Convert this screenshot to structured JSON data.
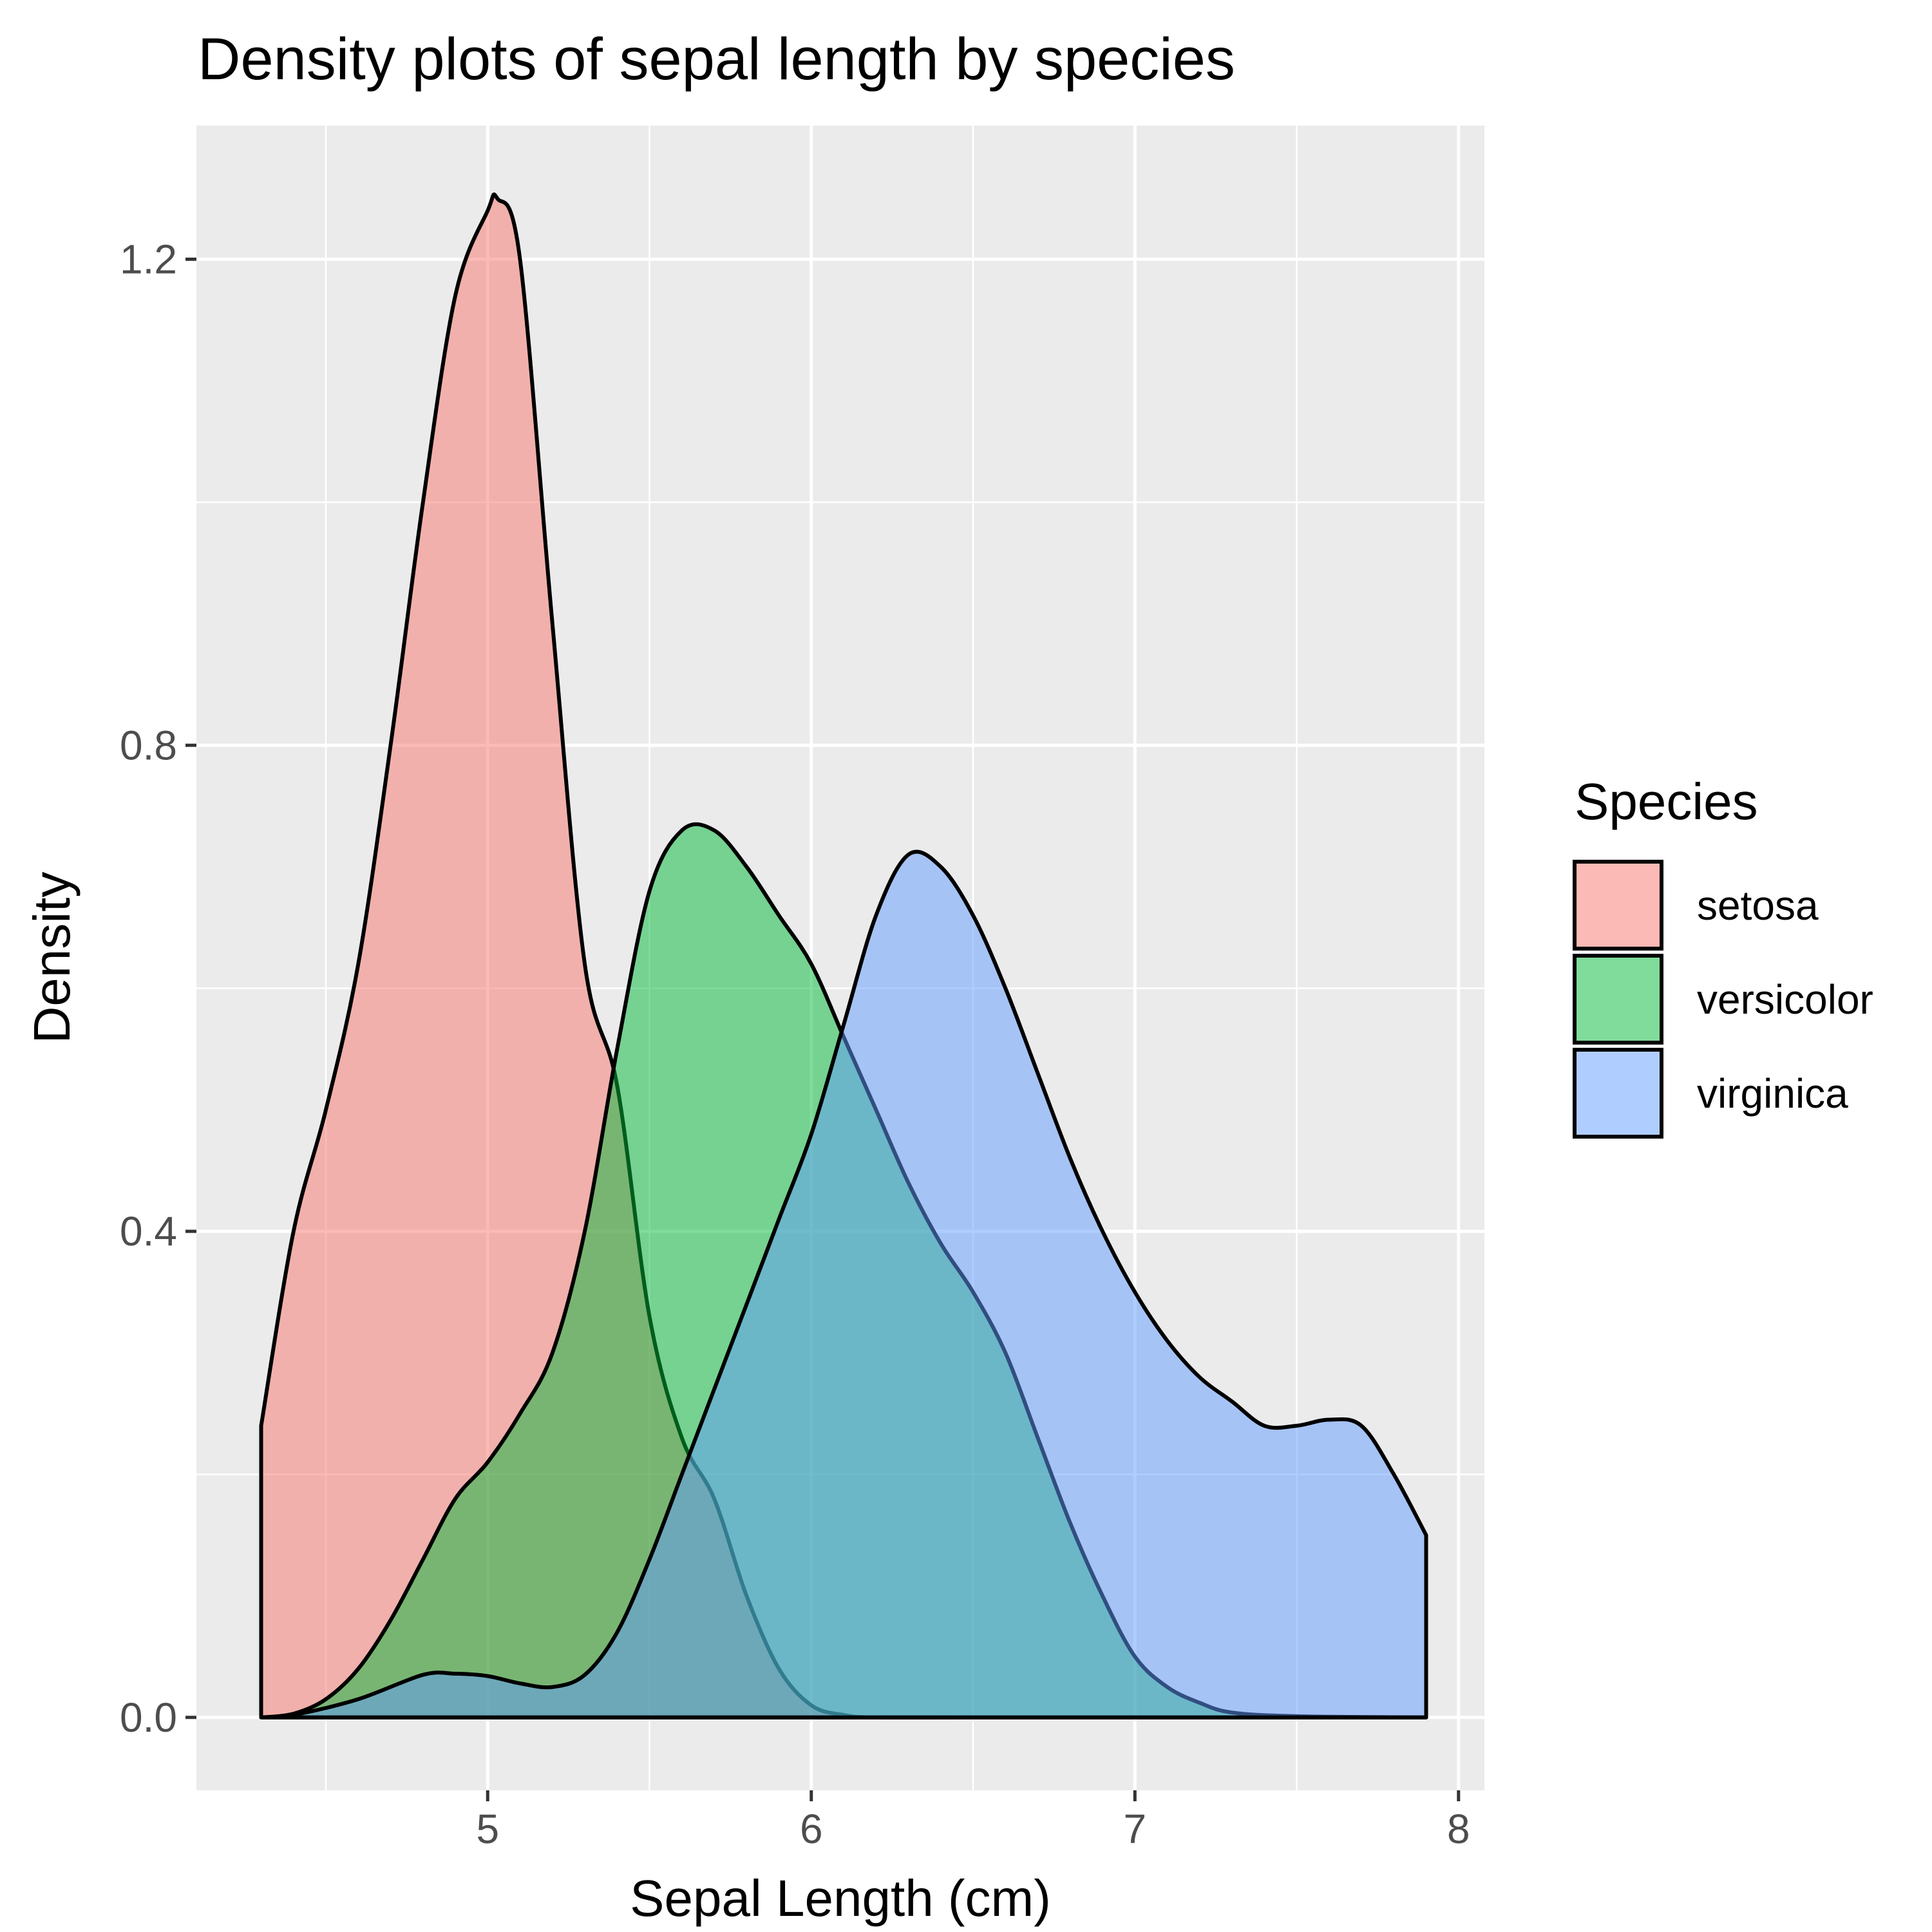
{
  "chart_data": {
    "type": "area",
    "title": "Density plots of sepal length by species",
    "xlabel": "Sepal Length (cm)",
    "ylabel": "Density",
    "xlim": [
      4.1,
      8.08
    ],
    "ylim": [
      -0.06,
      1.31
    ],
    "x_ticks": [
      5,
      6,
      7,
      8
    ],
    "x_tick_labels": [
      "5",
      "6",
      "7",
      "8"
    ],
    "y_ticks": [
      0.0,
      0.4,
      0.8,
      1.2
    ],
    "y_tick_labels": [
      "0.0",
      "0.4",
      "0.8",
      "1.2"
    ],
    "grid": true,
    "legend": {
      "title": "Species",
      "position": "right"
    },
    "series": [
      {
        "name": "setosa",
        "color": "#F8766D",
        "x": [
          4.3,
          4.4,
          4.5,
          4.6,
          4.7,
          4.8,
          4.9,
          5.0,
          5.03,
          5.1,
          5.2,
          5.3,
          5.4,
          5.5,
          5.6,
          5.7,
          5.8,
          5.9,
          6.0,
          6.1,
          6.2,
          6.5,
          7.0,
          7.5,
          7.9
        ],
        "y": [
          0.24,
          0.4,
          0.5,
          0.62,
          0.8,
          1.0,
          1.17,
          1.24,
          1.25,
          1.2,
          0.9,
          0.62,
          0.52,
          0.33,
          0.23,
          0.18,
          0.1,
          0.04,
          0.01,
          0.002,
          0.0,
          0.0,
          0.0,
          0.0,
          0.0
        ]
      },
      {
        "name": "versicolor",
        "color": "#00BA38",
        "x": [
          4.3,
          4.4,
          4.5,
          4.6,
          4.7,
          4.8,
          4.9,
          5.0,
          5.1,
          5.2,
          5.3,
          5.4,
          5.5,
          5.6,
          5.7,
          5.8,
          5.9,
          6.0,
          6.1,
          6.2,
          6.3,
          6.4,
          6.5,
          6.6,
          6.7,
          6.8,
          6.9,
          7.0,
          7.1,
          7.2,
          7.3,
          7.5,
          7.9
        ],
        "y": [
          0.0,
          0.003,
          0.015,
          0.04,
          0.08,
          0.13,
          0.18,
          0.21,
          0.25,
          0.3,
          0.4,
          0.55,
          0.68,
          0.73,
          0.73,
          0.7,
          0.66,
          0.62,
          0.56,
          0.5,
          0.44,
          0.39,
          0.35,
          0.3,
          0.23,
          0.16,
          0.1,
          0.05,
          0.025,
          0.012,
          0.004,
          0.001,
          0.0
        ]
      },
      {
        "name": "virginica",
        "color": "#619CFF",
        "x": [
          4.3,
          4.4,
          4.6,
          4.8,
          4.9,
          5.0,
          5.1,
          5.2,
          5.3,
          5.4,
          5.5,
          5.6,
          5.7,
          5.8,
          5.9,
          6.0,
          6.1,
          6.2,
          6.3,
          6.4,
          6.5,
          6.6,
          6.7,
          6.8,
          6.9,
          7.0,
          7.1,
          7.2,
          7.3,
          7.4,
          7.5,
          7.6,
          7.7,
          7.8,
          7.9
        ],
        "y": [
          0.0,
          0.002,
          0.015,
          0.035,
          0.036,
          0.034,
          0.028,
          0.025,
          0.035,
          0.07,
          0.13,
          0.2,
          0.27,
          0.34,
          0.41,
          0.48,
          0.57,
          0.66,
          0.71,
          0.7,
          0.66,
          0.6,
          0.53,
          0.46,
          0.4,
          0.35,
          0.31,
          0.28,
          0.26,
          0.24,
          0.24,
          0.245,
          0.24,
          0.2,
          0.15
        ]
      }
    ]
  }
}
